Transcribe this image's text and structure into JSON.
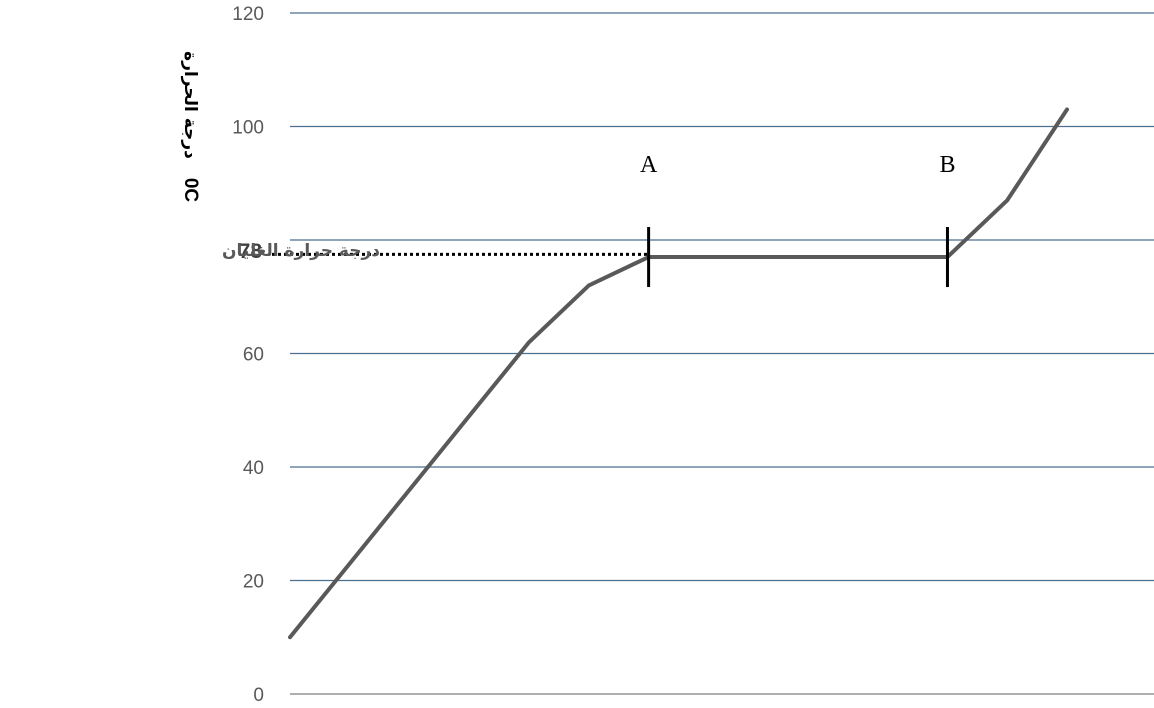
{
  "chart_data": {
    "type": "line",
    "ylabel": "درجة الحرارة",
    "ylabel_unit": "0C",
    "ylim": [
      0,
      120
    ],
    "yticks": [
      0,
      20,
      40,
      60,
      80,
      100,
      120
    ],
    "x": [
      0,
      1,
      2,
      3,
      4,
      5,
      6,
      7,
      8,
      9,
      10,
      11,
      12,
      13
    ],
    "series": [
      {
        "values": [
          10,
          23,
          36,
          49,
          62,
          72,
          77,
          77,
          77,
          77,
          77,
          77,
          87,
          103
        ]
      }
    ],
    "grid": true,
    "reference_line": {
      "value": 78,
      "label": "درجة حرارة الغليان"
    },
    "markers": [
      {
        "label": "A",
        "x": 6
      },
      {
        "label": "B",
        "x": 11
      }
    ],
    "colors": {
      "line": "#595959",
      "grid": "#4a6f8f",
      "reference": "#000000"
    }
  }
}
